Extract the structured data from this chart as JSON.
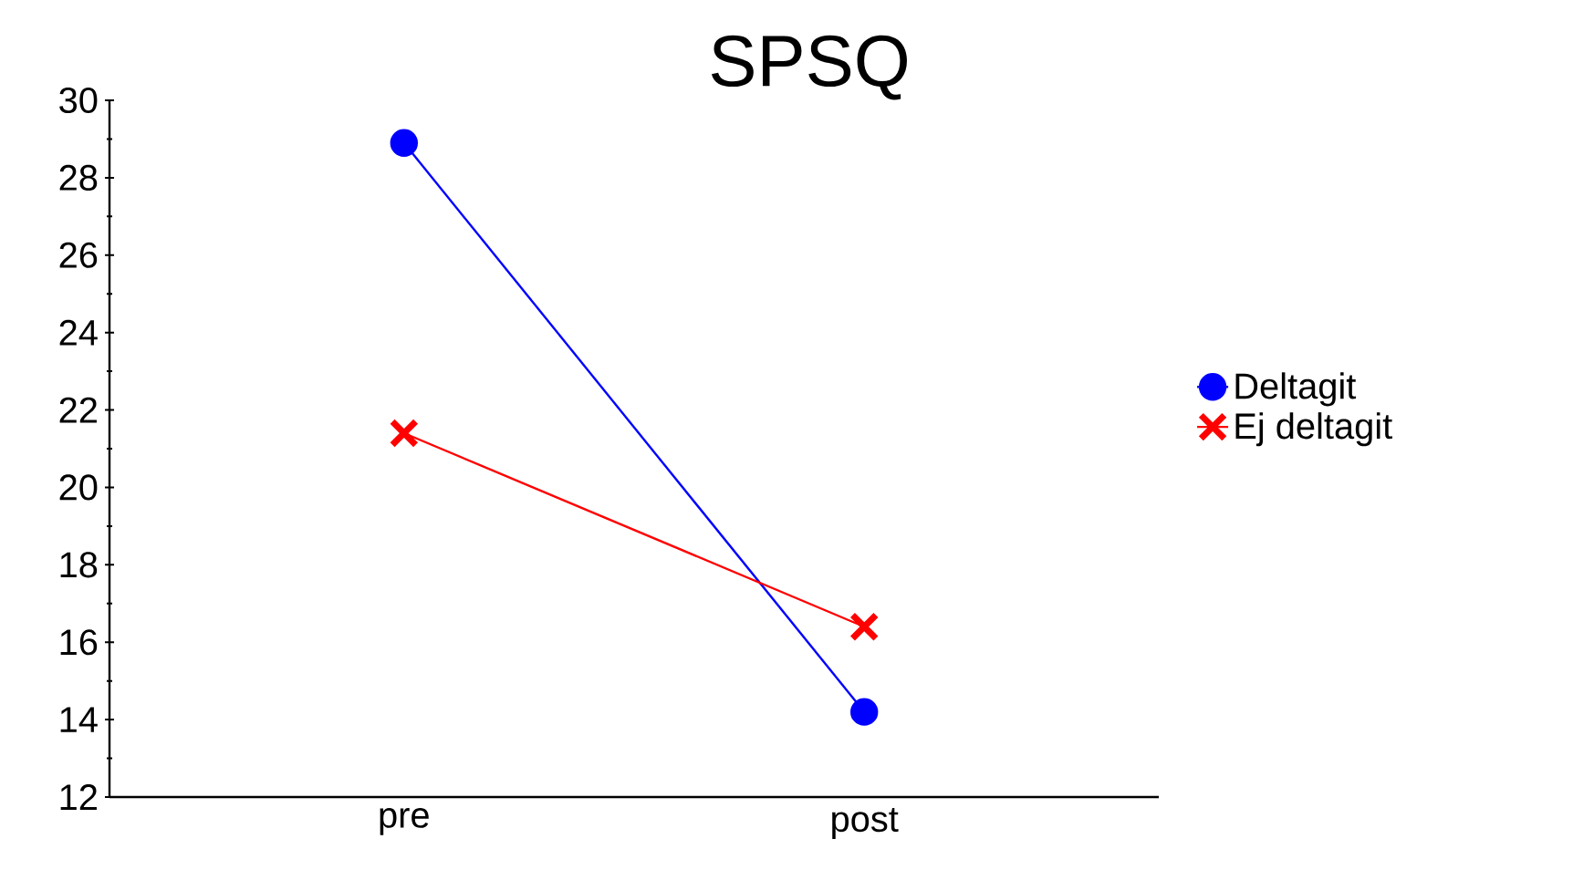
{
  "chart_data": {
    "type": "line",
    "title": "SPSQ",
    "categories": [
      "pre",
      "post"
    ],
    "series": [
      {
        "name": "Deltagit",
        "color": "#0000ff",
        "marker": "circle",
        "values": [
          28.9,
          14.2
        ]
      },
      {
        "name": "Ej deltagit",
        "color": "#ff0000",
        "marker": "cross",
        "values": [
          21.4,
          16.4
        ]
      }
    ],
    "ylim": [
      12,
      30
    ],
    "yticks": [
      12,
      14,
      16,
      18,
      20,
      22,
      24,
      26,
      28,
      30
    ],
    "grid": false,
    "legend": "right",
    "line_style": "solid"
  }
}
